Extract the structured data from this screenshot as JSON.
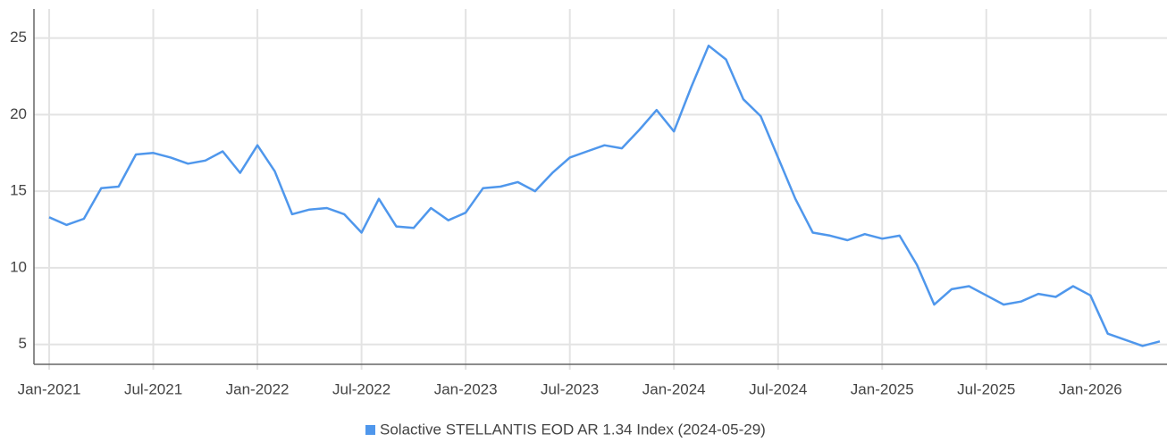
{
  "chart_data": {
    "type": "line",
    "x": [
      "2021-01",
      "2021-02",
      "2021-03",
      "2021-04",
      "2021-05",
      "2021-06",
      "2021-07",
      "2021-08",
      "2021-09",
      "2021-10",
      "2021-11",
      "2021-12",
      "2022-01",
      "2022-02",
      "2022-03",
      "2022-04",
      "2022-05",
      "2022-06",
      "2022-07",
      "2022-08",
      "2022-09",
      "2022-10",
      "2022-11",
      "2022-12",
      "2023-01",
      "2023-02",
      "2023-03",
      "2023-04",
      "2023-05",
      "2023-06",
      "2023-07",
      "2023-08",
      "2023-09",
      "2023-10",
      "2023-11",
      "2023-12",
      "2024-01",
      "2024-02",
      "2024-03",
      "2024-04",
      "2024-05",
      "2024-06",
      "2024-07",
      "2024-08",
      "2024-09",
      "2024-10",
      "2024-11",
      "2024-12",
      "2025-01",
      "2025-02",
      "2025-03",
      "2025-04",
      "2025-05",
      "2025-06",
      "2025-07",
      "2025-08",
      "2025-09",
      "2025-10",
      "2025-11",
      "2025-12",
      "2026-01",
      "2026-02",
      "2026-03",
      "2026-04",
      "2026-05"
    ],
    "series": [
      {
        "name": "Solactive STELLANTIS EOD AR 1.34 Index (2024-05-29)",
        "color": "#4f97ec",
        "values": [
          13.3,
          12.8,
          13.2,
          15.2,
          15.3,
          17.4,
          17.5,
          17.2,
          16.8,
          17.0,
          17.6,
          16.2,
          18.0,
          16.3,
          13.5,
          13.8,
          13.9,
          13.5,
          12.3,
          14.5,
          12.7,
          12.6,
          13.9,
          13.1,
          13.6,
          15.2,
          15.3,
          15.6,
          15.0,
          16.2,
          17.2,
          17.6,
          18.0,
          17.8,
          19.0,
          20.3,
          18.9,
          21.8,
          24.5,
          23.6,
          21.0,
          19.9,
          17.2,
          14.5,
          12.3,
          12.1,
          11.8,
          12.2,
          11.9,
          12.1,
          10.2,
          7.6,
          8.6,
          8.8,
          8.2,
          7.6,
          7.8,
          8.3,
          8.1,
          8.8,
          8.2,
          5.7,
          5.3,
          4.9,
          5.2
        ]
      }
    ],
    "xlim": [
      "2020-12",
      "2026-05"
    ],
    "xticks": [
      {
        "value": "2021-01",
        "label": "Jan-2021"
      },
      {
        "value": "2021-07",
        "label": "Jul-2021"
      },
      {
        "value": "2022-01",
        "label": "Jan-2022"
      },
      {
        "value": "2022-07",
        "label": "Jul-2022"
      },
      {
        "value": "2023-01",
        "label": "Jan-2023"
      },
      {
        "value": "2023-07",
        "label": "Jul-2023"
      },
      {
        "value": "2024-01",
        "label": "Jan-2024"
      },
      {
        "value": "2024-07",
        "label": "Jul-2024"
      },
      {
        "value": "2025-01",
        "label": "Jan-2025"
      },
      {
        "value": "2025-07",
        "label": "Jul-2025"
      },
      {
        "value": "2026-01",
        "label": "Jan-2026"
      }
    ],
    "ylim": [
      3.7,
      26.9
    ],
    "yticks": [
      5,
      10,
      15,
      20,
      25
    ],
    "grid": true
  }
}
